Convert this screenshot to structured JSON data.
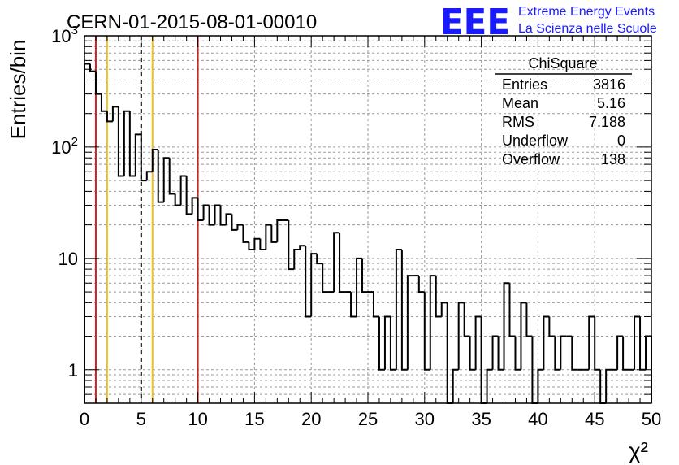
{
  "header": {
    "run_title": "CERN-01-2015-08-01-00010",
    "logo_text": "EEE",
    "logo_line1": "Extreme Energy Events",
    "logo_line2": "La Scienza nelle Scuole"
  },
  "stats": {
    "title": "ChiSquare",
    "rows": [
      {
        "label": "Entries",
        "value": "3816"
      },
      {
        "label": "Mean",
        "value": "5.16"
      },
      {
        "label": "RMS",
        "value": "7.188"
      },
      {
        "label": "Underflow",
        "value": "0"
      },
      {
        "label": "Overflow",
        "value": "138"
      }
    ]
  },
  "chart_data": {
    "type": "histogram",
    "title": "CERN-01-2015-08-01-00010",
    "xlabel": "χ²",
    "ylabel": "Entries/bin",
    "xlim": [
      0,
      50
    ],
    "ylim": [
      0.5,
      1000
    ],
    "yscale": "log",
    "grid": true,
    "bin_width": 0.5,
    "x_ticks": [
      0,
      5,
      10,
      15,
      20,
      25,
      30,
      35,
      40,
      45,
      50
    ],
    "x_tick_labels": [
      "0",
      "5",
      "10",
      "15",
      "20",
      "25",
      "30",
      "35",
      "40",
      "45",
      "50"
    ],
    "y_ticks": [
      1,
      10,
      100,
      1000
    ],
    "y_tick_labels": [
      "1",
      "10",
      "10²",
      "10³"
    ],
    "counts": [
      560,
      480,
      300,
      210,
      170,
      230,
      55,
      210,
      55,
      130,
      50,
      60,
      95,
      32,
      80,
      38,
      30,
      55,
      25,
      35,
      22,
      30,
      20,
      30,
      20,
      25,
      18,
      20,
      14,
      12,
      15,
      12,
      20,
      14,
      22,
      22,
      8,
      12,
      13,
      3,
      11,
      9,
      5,
      5,
      17,
      5,
      5,
      3,
      10,
      5,
      5,
      3,
      1,
      3,
      1,
      12,
      1,
      7,
      7,
      5,
      1,
      7,
      3,
      4,
      0,
      1,
      4,
      2,
      1,
      3,
      0.5,
      1,
      2,
      1,
      6,
      2,
      1,
      4,
      2,
      0.5,
      1,
      3,
      2,
      1,
      2,
      2,
      1,
      1,
      1,
      3,
      1,
      0.5,
      1,
      1,
      2,
      1,
      1,
      3,
      1,
      2
    ],
    "vertical_lines": [
      {
        "x": 1,
        "color": "#d32020",
        "style": "solid"
      },
      {
        "x": 2,
        "color": "#f2c01d",
        "style": "solid"
      },
      {
        "x": 5,
        "color": "#000000",
        "style": "dashed"
      },
      {
        "x": 6,
        "color": "#f2c01d",
        "style": "solid"
      },
      {
        "x": 10,
        "color": "#d32020",
        "style": "solid"
      }
    ]
  }
}
